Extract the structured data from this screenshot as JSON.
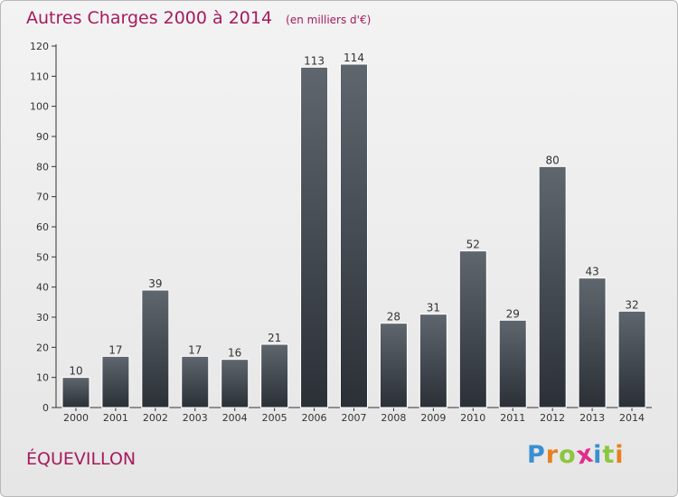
{
  "header": {
    "title": "Autres Charges 2000 à 2014",
    "subtitle": "(en milliers d'€)"
  },
  "footer": {
    "city": "ÉQUEVILLON",
    "logo_letters": [
      {
        "ch": "P",
        "color": "#3a8fd1"
      },
      {
        "ch": "r",
        "color": "#e5811f"
      },
      {
        "ch": "o",
        "color": "#8cc63f"
      },
      {
        "ch": "x",
        "color": "#e22d8a"
      },
      {
        "ch": "i",
        "color": "#3a8fd1"
      },
      {
        "ch": "t",
        "color": "#8cc63f"
      },
      {
        "ch": "i",
        "color": "#e5811f"
      }
    ]
  },
  "chart_data": {
    "type": "bar",
    "categories": [
      "2000",
      "2001",
      "2002",
      "2003",
      "2004",
      "2005",
      "2006",
      "2007",
      "2008",
      "2009",
      "2010",
      "2011",
      "2012",
      "2013",
      "2014"
    ],
    "values": [
      10,
      17,
      39,
      17,
      16,
      21,
      113,
      114,
      28,
      31,
      52,
      29,
      80,
      43,
      32
    ],
    "title": "Autres Charges 2000 à 2014",
    "subtitle": "(en milliers d'€)",
    "xlabel": "",
    "ylabel": "",
    "ylim": [
      0,
      120
    ],
    "yticks": [
      0,
      10,
      20,
      30,
      40,
      50,
      60,
      70,
      80,
      90,
      100,
      110,
      120
    ],
    "grid": false,
    "data_labels": true,
    "bar_color_top": "#5f666d",
    "bar_color_bottom": "#2b3037"
  }
}
